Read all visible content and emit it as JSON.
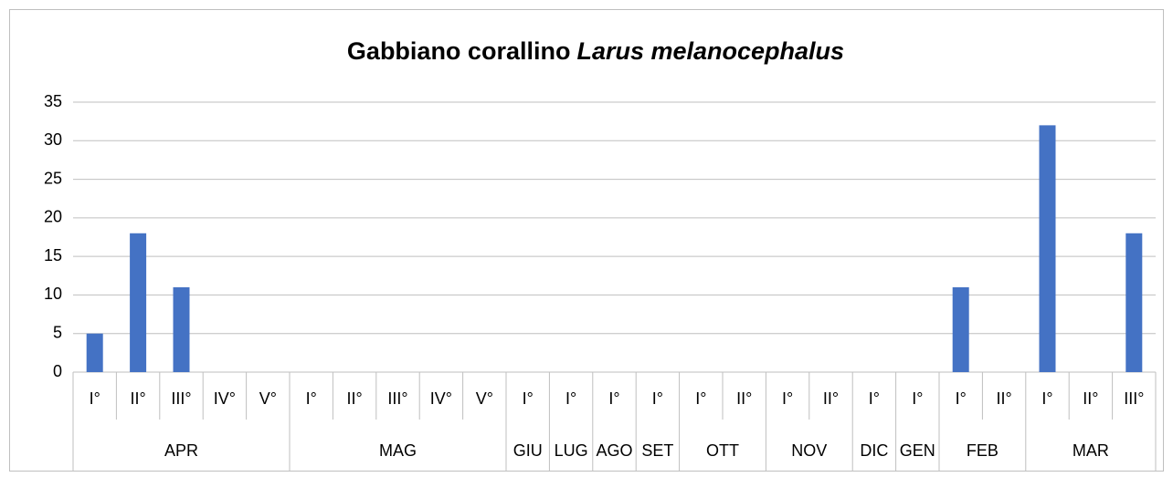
{
  "chart_data": {
    "type": "bar",
    "title_parts": [
      {
        "text": "Gabbiano corallino"
      },
      {
        "text": "Larus melanocephalus",
        "italic": true
      }
    ],
    "groups": [
      {
        "label": "APR",
        "categories": [
          "I°",
          "II°",
          "III°",
          "IV°",
          "V°"
        ]
      },
      {
        "label": "MAG",
        "categories": [
          "I°",
          "II°",
          "III°",
          "IV°",
          "V°"
        ]
      },
      {
        "label": "GIU",
        "categories": [
          "I°"
        ]
      },
      {
        "label": "LUG",
        "categories": [
          "I°"
        ]
      },
      {
        "label": "AGO",
        "categories": [
          "I°"
        ]
      },
      {
        "label": "SET",
        "categories": [
          "I°"
        ]
      },
      {
        "label": "OTT",
        "categories": [
          "I°",
          "II°"
        ]
      },
      {
        "label": "NOV",
        "categories": [
          "I°",
          "II°"
        ]
      },
      {
        "label": "DIC",
        "categories": [
          "I°"
        ]
      },
      {
        "label": "GEN",
        "categories": [
          "I°"
        ]
      },
      {
        "label": "FEB",
        "categories": [
          "I°",
          "II°"
        ]
      },
      {
        "label": "MAR",
        "categories": [
          "I°",
          "II°",
          "III°"
        ]
      }
    ],
    "values": [
      5,
      18,
      11,
      0,
      0,
      0,
      0,
      0,
      0,
      0,
      0,
      0,
      0,
      0,
      0,
      0,
      0,
      0,
      0,
      0,
      11,
      0,
      32,
      0,
      18
    ],
    "color": "#4472c4",
    "ylim": [
      0,
      35
    ],
    "yticks": [
      0,
      5,
      10,
      15,
      20,
      25,
      30,
      35
    ],
    "grid": true
  }
}
